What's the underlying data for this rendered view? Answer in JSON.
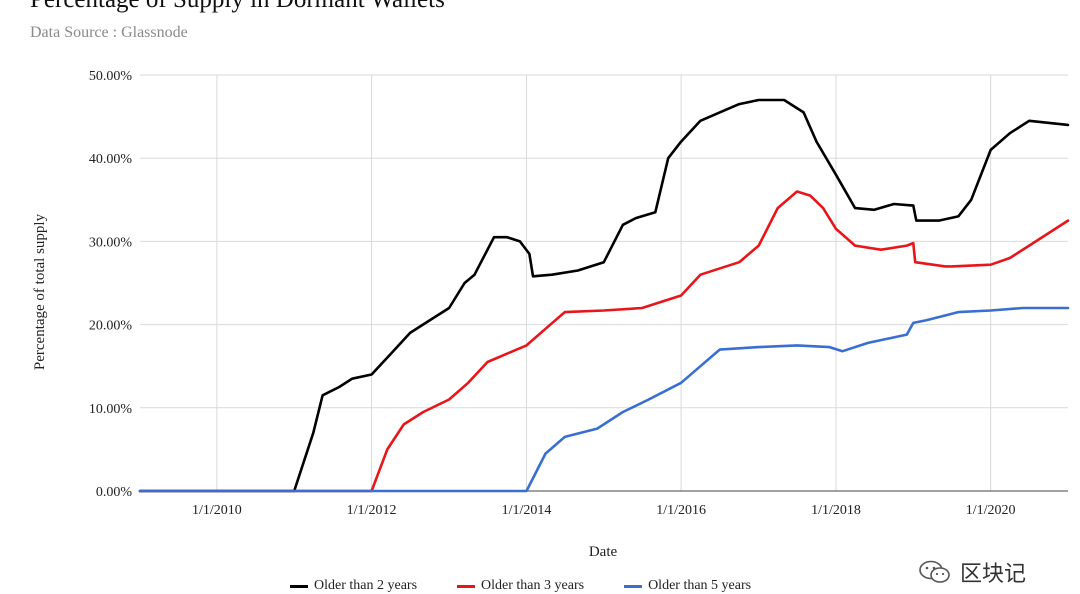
{
  "header": {
    "title": "Percentage of Supply in Dormant Wallets",
    "subtitle": "Data Source : Glassnode"
  },
  "watermark": {
    "text": "区块记",
    "icon": "wechat-icon"
  },
  "chart_data": {
    "type": "line",
    "title": "Percentage of Supply in Dormant Wallets",
    "xlabel": "Date",
    "ylabel": "Percentage of total supply",
    "xlim": [
      "2009-01-03",
      "2020-12-31"
    ],
    "ylim": [
      0,
      50
    ],
    "y_ticks": [
      "0.00%",
      "10.00%",
      "20.00%",
      "30.00%",
      "40.00%",
      "50.00%"
    ],
    "x_ticks": [
      "1/1/2010",
      "1/1/2012",
      "1/1/2014",
      "1/1/2016",
      "1/1/2018",
      "1/1/2020"
    ],
    "grid": true,
    "legend": "bottom",
    "series": [
      {
        "name": "Older than 2 years",
        "color": "#000000",
        "points": [
          [
            "2009-01-03",
            0
          ],
          [
            "2011-01-01",
            0
          ],
          [
            "2011-04-01",
            7
          ],
          [
            "2011-05-15",
            11.5
          ],
          [
            "2011-08-01",
            12.5
          ],
          [
            "2011-10-01",
            13.5
          ],
          [
            "2012-01-01",
            14
          ],
          [
            "2012-04-01",
            16.5
          ],
          [
            "2012-07-01",
            19
          ],
          [
            "2012-10-01",
            20.5
          ],
          [
            "2013-01-01",
            22
          ],
          [
            "2013-03-15",
            25
          ],
          [
            "2013-05-01",
            26
          ],
          [
            "2013-08-01",
            30.5
          ],
          [
            "2013-10-01",
            30.5
          ],
          [
            "2013-12-01",
            30
          ],
          [
            "2014-01-15",
            28.5
          ],
          [
            "2014-02-01",
            25.8
          ],
          [
            "2014-05-01",
            26
          ],
          [
            "2014-09-01",
            26.5
          ],
          [
            "2015-01-01",
            27.5
          ],
          [
            "2015-04-01",
            32
          ],
          [
            "2015-06-01",
            32.8
          ],
          [
            "2015-09-01",
            33.5
          ],
          [
            "2015-11-01",
            40
          ],
          [
            "2016-01-01",
            42
          ],
          [
            "2016-04-01",
            44.5
          ],
          [
            "2016-07-01",
            45.5
          ],
          [
            "2016-10-01",
            46.5
          ],
          [
            "2017-01-01",
            47
          ],
          [
            "2017-05-01",
            47
          ],
          [
            "2017-08-01",
            45.5
          ],
          [
            "2017-10-01",
            42
          ],
          [
            "2018-01-01",
            38
          ],
          [
            "2018-04-01",
            34
          ],
          [
            "2018-07-01",
            33.8
          ],
          [
            "2018-10-01",
            34.5
          ],
          [
            "2019-01-01",
            34.3
          ],
          [
            "2019-01-15",
            32.5
          ],
          [
            "2019-05-01",
            32.5
          ],
          [
            "2019-08-01",
            33
          ],
          [
            "2019-10-01",
            35
          ],
          [
            "2020-01-01",
            41
          ],
          [
            "2020-04-01",
            43
          ],
          [
            "2020-07-01",
            44.5
          ],
          [
            "2020-12-31",
            44
          ]
        ]
      },
      {
        "name": "Older than 3 years",
        "color": "#e8161b",
        "points": [
          [
            "2009-01-03",
            0
          ],
          [
            "2012-01-01",
            0
          ],
          [
            "2012-03-15",
            5
          ],
          [
            "2012-06-01",
            8
          ],
          [
            "2012-09-01",
            9.5
          ],
          [
            "2013-01-01",
            11
          ],
          [
            "2013-04-01",
            13
          ],
          [
            "2013-07-01",
            15.5
          ],
          [
            "2013-10-01",
            16.5
          ],
          [
            "2014-01-01",
            17.5
          ],
          [
            "2014-04-01",
            19.5
          ],
          [
            "2014-07-01",
            21.5
          ],
          [
            "2015-01-01",
            21.7
          ],
          [
            "2015-07-01",
            22
          ],
          [
            "2016-01-01",
            23.5
          ],
          [
            "2016-04-01",
            26
          ],
          [
            "2016-10-01",
            27.5
          ],
          [
            "2017-01-01",
            29.5
          ],
          [
            "2017-04-01",
            34
          ],
          [
            "2017-07-01",
            36
          ],
          [
            "2017-09-01",
            35.5
          ],
          [
            "2017-11-01",
            34
          ],
          [
            "2018-01-01",
            31.5
          ],
          [
            "2018-04-01",
            29.5
          ],
          [
            "2018-08-01",
            29
          ],
          [
            "2018-12-01",
            29.5
          ],
          [
            "2019-01-01",
            29.8
          ],
          [
            "2019-01-10",
            27.5
          ],
          [
            "2019-06-01",
            27
          ],
          [
            "2019-07-01",
            27
          ],
          [
            "2020-01-01",
            27.2
          ],
          [
            "2020-04-01",
            28
          ],
          [
            "2020-08-01",
            30
          ],
          [
            "2020-12-31",
            32.5
          ]
        ]
      },
      {
        "name": "Older than 5 years",
        "color": "#3a6fd2",
        "points": [
          [
            "2009-01-03",
            0
          ],
          [
            "2014-01-01",
            0
          ],
          [
            "2014-04-01",
            4.5
          ],
          [
            "2014-07-01",
            6.5
          ],
          [
            "2014-12-01",
            7.5
          ],
          [
            "2015-04-01",
            9.5
          ],
          [
            "2015-08-01",
            11
          ],
          [
            "2016-01-01",
            13
          ],
          [
            "2016-04-01",
            15
          ],
          [
            "2016-07-01",
            17
          ],
          [
            "2017-01-01",
            17.3
          ],
          [
            "2017-07-01",
            17.5
          ],
          [
            "2017-12-01",
            17.3
          ],
          [
            "2018-02-01",
            16.8
          ],
          [
            "2018-06-01",
            17.8
          ],
          [
            "2018-12-01",
            18.8
          ],
          [
            "2019-01-01",
            20.2
          ],
          [
            "2019-03-01",
            20.5
          ],
          [
            "2019-08-01",
            21.5
          ],
          [
            "2020-01-01",
            21.7
          ],
          [
            "2020-06-01",
            22
          ],
          [
            "2020-12-31",
            22
          ]
        ]
      }
    ]
  }
}
